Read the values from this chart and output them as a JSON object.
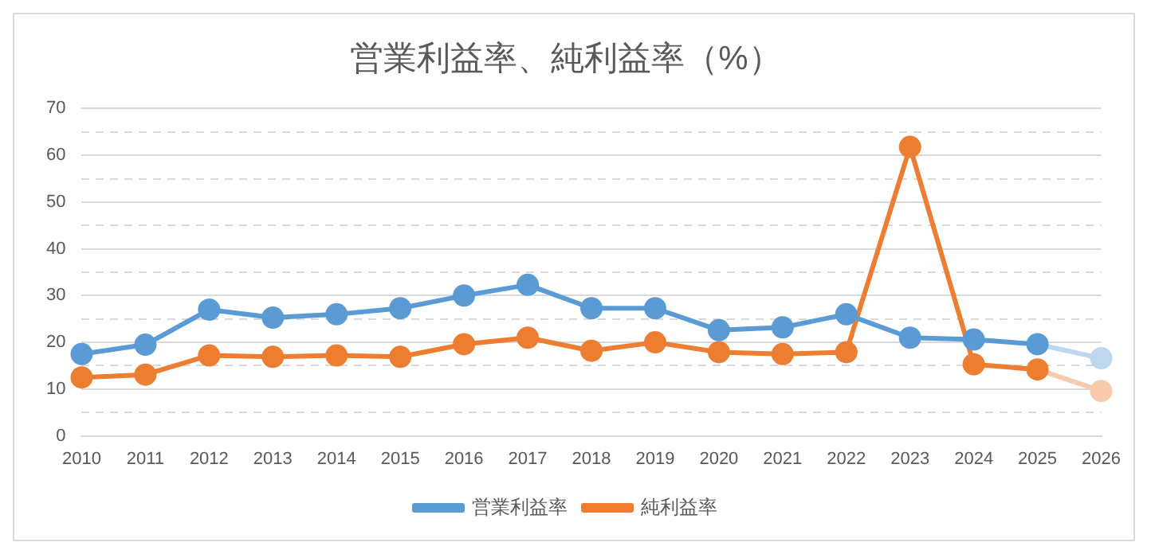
{
  "chart_data": {
    "type": "line",
    "title": "営業利益率、純利益率（%）",
    "categories": [
      "2010",
      "2011",
      "2012",
      "2013",
      "2014",
      "2015",
      "2016",
      "2017",
      "2018",
      "2019",
      "2020",
      "2021",
      "2022",
      "2023",
      "2024",
      "2025",
      "2026"
    ],
    "series": [
      {
        "name": "営業利益率",
        "color": "#5b9bd5",
        "values": [
          17.5,
          19.5,
          27,
          25.3,
          26,
          27.3,
          30,
          32.3,
          27.3,
          27.3,
          22.6,
          23.2,
          26,
          21,
          20.6,
          19.6,
          null
        ]
      },
      {
        "name": "純利益率",
        "color": "#ed7d31",
        "values": [
          12.5,
          13.1,
          17.2,
          16.9,
          17.2,
          16.9,
          19.6,
          21,
          18.2,
          20,
          17.9,
          17.5,
          17.9,
          61.8,
          15.3,
          14.2,
          null
        ]
      },
      {
        "color": "#bdd7ee",
        "values": [
          null,
          null,
          null,
          null,
          null,
          null,
          null,
          null,
          null,
          null,
          null,
          null,
          null,
          null,
          null,
          19.6,
          16.6
        ]
      },
      {
        "color": "#f8cbad",
        "values": [
          null,
          null,
          null,
          null,
          null,
          null,
          null,
          null,
          null,
          null,
          null,
          null,
          null,
          null,
          null,
          14.2,
          9.6
        ]
      }
    ],
    "ylim": [
      0,
      70
    ],
    "yticks": [
      0,
      {
        "value": 5,
        "label": null
      },
      10,
      {
        "value": 15,
        "label": null
      },
      20,
      {
        "value": 25,
        "label": null
      },
      30,
      {
        "value": 35,
        "label": null
      },
      40,
      {
        "value": 45,
        "label": null
      },
      50,
      {
        "value": 55,
        "label": null
      },
      60,
      {
        "value": 65,
        "label": null
      },
      70
    ],
    "grid": "y",
    "legend": "bottom",
    "marker": "circle",
    "line_style": "solid"
  }
}
